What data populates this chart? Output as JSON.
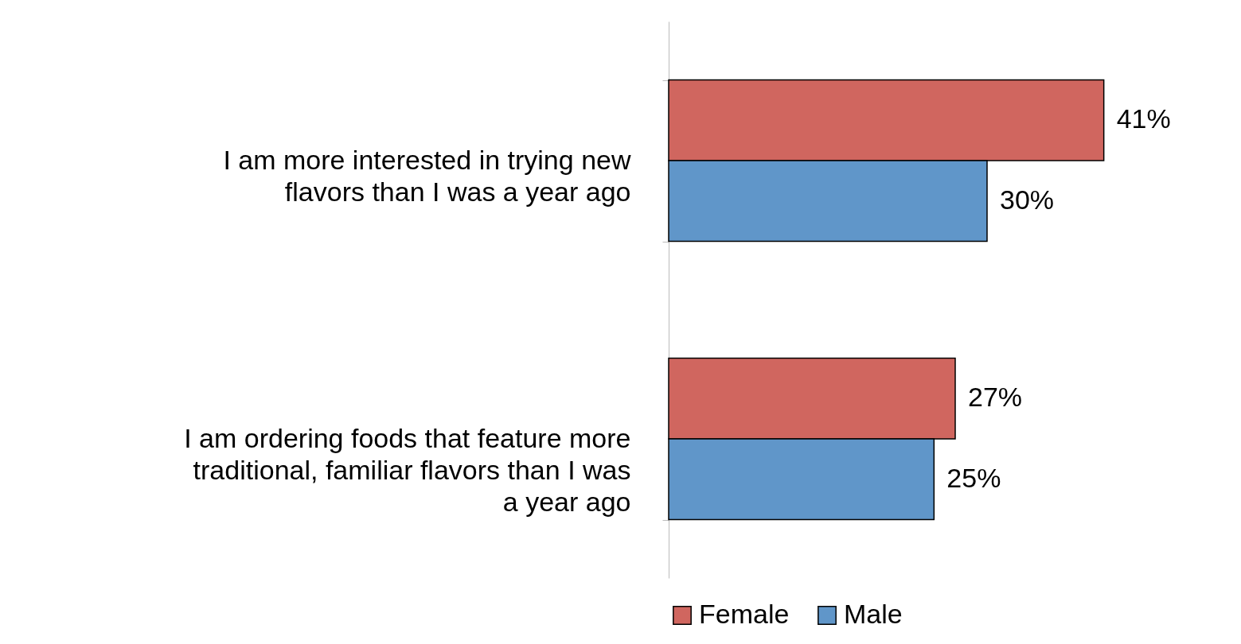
{
  "chart_data": {
    "type": "bar",
    "orientation": "horizontal",
    "categories": [
      "I am more interested in trying new flavors than I was a year ago",
      "I am ordering foods that feature more traditional, familiar flavors than I was a year ago"
    ],
    "series": [
      {
        "name": "Female",
        "color": "#d0665f",
        "values": [
          41,
          27
        ],
        "value_labels": [
          "41%",
          "27%"
        ]
      },
      {
        "name": "Male",
        "color": "#6096c9",
        "values": [
          30,
          25
        ],
        "value_labels": [
          "30%",
          "25%"
        ]
      }
    ],
    "legend": "bottom"
  }
}
